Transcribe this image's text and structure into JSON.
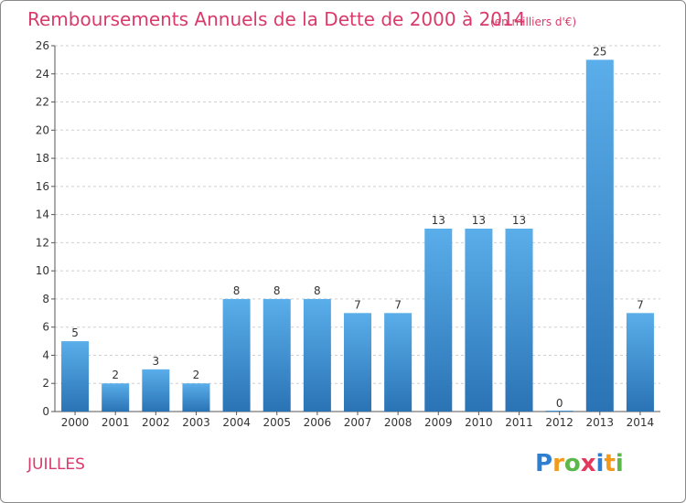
{
  "title": "Remboursements Annuels de la Dette de 2000 à 2014",
  "unit": "(en milliers d'€)",
  "commune": "JUILLES",
  "logo": {
    "text": "Proxiti",
    "letters": [
      {
        "ch": "P",
        "color": "#2f7fd0"
      },
      {
        "ch": "r",
        "color": "#f39a1a"
      },
      {
        "ch": "o",
        "color": "#5cb84a"
      },
      {
        "ch": "x",
        "color": "#e23a5d"
      },
      {
        "ch": "i",
        "color": "#2f7fd0"
      },
      {
        "ch": "t",
        "color": "#f39a1a"
      },
      {
        "ch": "i",
        "color": "#5cb84a"
      }
    ]
  },
  "colors": {
    "accent": "#d93a6b",
    "bar_top": "#5aaeea",
    "bar_bottom": "#2a73b5",
    "grid": "#cfcfcf"
  },
  "chart_data": {
    "type": "bar",
    "categories": [
      "2000",
      "2001",
      "2002",
      "2003",
      "2004",
      "2005",
      "2006",
      "2007",
      "2008",
      "2009",
      "2010",
      "2011",
      "2012",
      "2013",
      "2014"
    ],
    "values": [
      5,
      2,
      3,
      2,
      8,
      8,
      8,
      7,
      7,
      13,
      13,
      13,
      0,
      25,
      7
    ],
    "ylim": [
      0,
      26
    ],
    "yticks": [
      0,
      2,
      4,
      6,
      8,
      10,
      12,
      14,
      16,
      18,
      20,
      22,
      24,
      26
    ],
    "grid": true,
    "xlabel": "",
    "ylabel": ""
  }
}
